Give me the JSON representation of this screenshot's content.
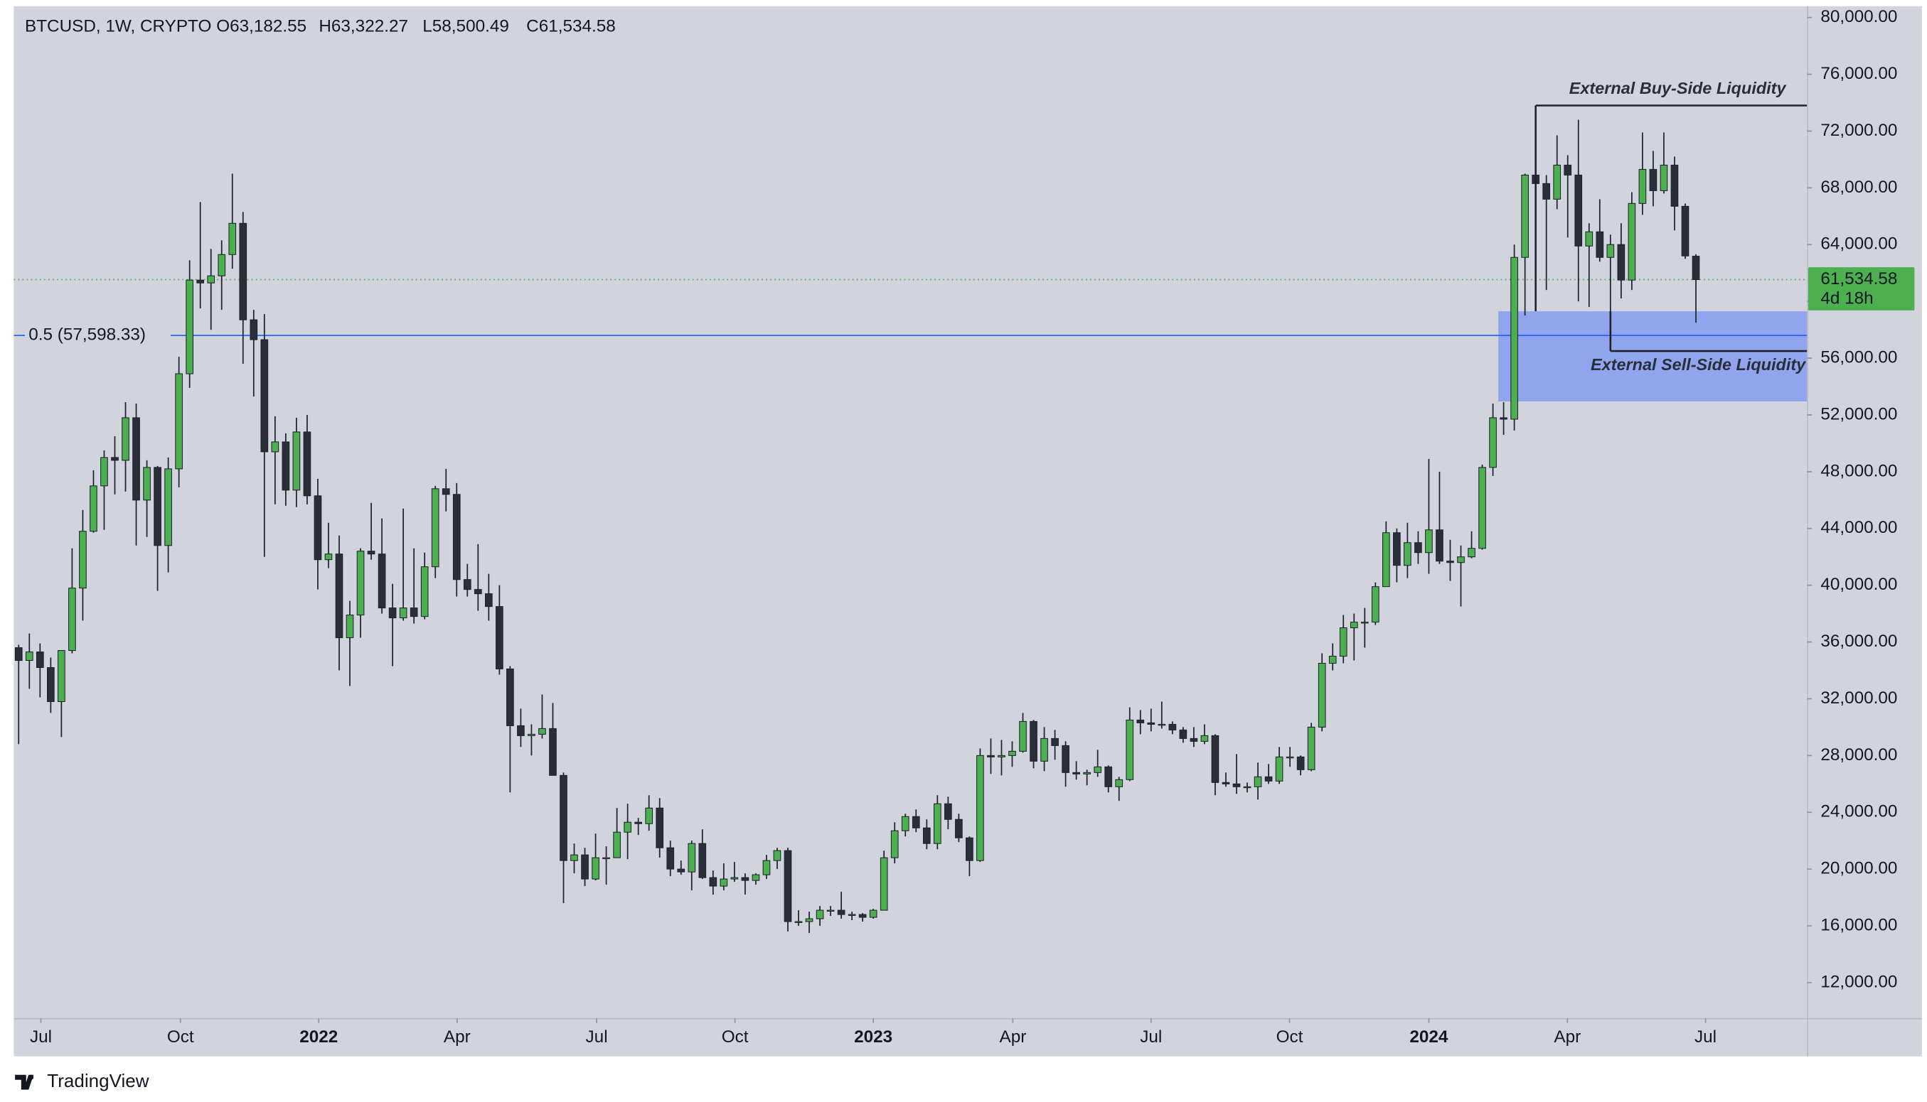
{
  "chart_data": {
    "type": "candlestick",
    "legend": {
      "symbol": "BTCUSD, 1W, CRYPTO",
      "open": "O63,182.55",
      "high": "H63,322.27",
      "low": "L58,500.49",
      "close": "C61,534.58"
    },
    "up_color": "#4caf50",
    "down_color": "#2a2e39",
    "wick_color": "#1e222d",
    "open": [
      35600,
      34700,
      35300,
      34200,
      31800,
      35400,
      39800,
      43800,
      47000,
      49000,
      48800,
      51800,
      46000,
      48300,
      42800,
      48200,
      54900,
      61500,
      61300,
      61800,
      63300,
      65500,
      58700,
      57300,
      49400,
      50100,
      46700,
      50800,
      46300,
      41800,
      42200,
      36300,
      37900,
      42400,
      42200,
      38400,
      37700,
      38400,
      37800,
      41300,
      46800,
      46400,
      40400,
      39700,
      39400,
      38500,
      34100,
      30100,
      29400,
      29500,
      29900,
      26600,
      20600,
      21000,
      19300,
      20800,
      20800,
      22600,
      23300,
      23200,
      24300,
      21500,
      20000,
      19800,
      21800,
      19400,
      18800,
      19300,
      19400,
      19200,
      19600,
      20600,
      21300,
      16300,
      16300,
      16500,
      17100,
      17100,
      16800,
      16800,
      16600,
      17100,
      20800,
      22700,
      23700,
      22900,
      21800,
      24600,
      23500,
      22200,
      20600,
      28000,
      27900,
      28000,
      28300,
      30400,
      27600,
      29200,
      28700,
      26800,
      26700,
      26800,
      27200,
      25800,
      26300,
      30500,
      30300,
      30200,
      30200,
      29800,
      29200,
      29000,
      29400,
      26100,
      26000,
      25800,
      25800,
      26500,
      26200,
      27900,
      27900,
      27000,
      30000,
      34500,
      35000,
      37000,
      37400,
      37400,
      39900,
      43700,
      41400,
      43000,
      42300,
      43900,
      41700,
      41600,
      42000,
      42600,
      48300,
      51800,
      51700,
      63100,
      68900,
      68300,
      67200,
      69600,
      68900,
      63900,
      64900,
      63100,
      64000,
      61500,
      66900,
      69300,
      67800,
      69600,
      66700,
      63182.55
    ],
    "high": [
      35800,
      36600,
      35900,
      34900,
      35400,
      42600,
      45300,
      48100,
      49500,
      50500,
      52900,
      52800,
      48800,
      48400,
      49000,
      56100,
      62900,
      67000,
      63700,
      64300,
      69000,
      66300,
      59400,
      59100,
      51900,
      50700,
      51800,
      52000,
      47500,
      44400,
      43500,
      38900,
      42600,
      45800,
      44700,
      40100,
      45400,
      42600,
      42300,
      47000,
      48200,
      47200,
      41500,
      42900,
      40800,
      40000,
      34300,
      31300,
      30200,
      32300,
      31700,
      26800,
      21800,
      21500,
      22500,
      21600,
      24300,
      24600,
      23600,
      25200,
      25000,
      22000,
      20600,
      22000,
      22800,
      19900,
      20400,
      20500,
      19700,
      19700,
      21000,
      21500,
      21500,
      17100,
      17000,
      17400,
      17400,
      18400,
      17000,
      16900,
      17200,
      21300,
      23300,
      23900,
      24200,
      23500,
      25200,
      25100,
      23900,
      22300,
      28500,
      29200,
      29100,
      29000,
      31000,
      30500,
      30000,
      29800,
      29000,
      27600,
      27000,
      28400,
      27300,
      26500,
      31400,
      31200,
      31300,
      31800,
      30400,
      30000,
      30000,
      30200,
      29500,
      26800,
      28100,
      26100,
      27500,
      27400,
      28600,
      28600,
      28000,
      30300,
      35200,
      35900,
      37900,
      38000,
      38400,
      40200,
      44500,
      44000,
      44400,
      43800,
      48900,
      48000,
      43200,
      42800,
      43800,
      48500,
      52800,
      52900,
      64000,
      69000,
      73800,
      68900,
      71700,
      70300,
      72800,
      65500,
      67200,
      64700,
      65500,
      67700,
      71900,
      70600,
      71900,
      70200,
      66900,
      63322.27
    ],
    "low": [
      28800,
      32700,
      32100,
      31000,
      29300,
      35200,
      37500,
      43700,
      43900,
      46400,
      46600,
      42800,
      43400,
      39600,
      40900,
      46900,
      53900,
      59500,
      58000,
      59400,
      62300,
      55600,
      53300,
      42000,
      45700,
      45600,
      45500,
      45700,
      39700,
      41200,
      34000,
      32900,
      36300,
      41800,
      38000,
      34300,
      37500,
      37300,
      37600,
      40500,
      45200,
      39200,
      39200,
      38200,
      37500,
      33700,
      25400,
      28600,
      28000,
      29200,
      26600,
      17600,
      19700,
      18800,
      19200,
      18900,
      20800,
      20700,
      22400,
      22700,
      20800,
      19500,
      19600,
      18500,
      19300,
      18200,
      18500,
      19100,
      18200,
      18900,
      19300,
      20000,
      15600,
      16000,
      15500,
      16000,
      16700,
      16500,
      16400,
      16300,
      16500,
      17100,
      20400,
      22300,
      22600,
      21400,
      21400,
      22800,
      21900,
      19500,
      20500,
      26700,
      26600,
      27200,
      28200,
      27100,
      26900,
      27700,
      25800,
      26300,
      25900,
      26500,
      25400,
      24800,
      26200,
      29500,
      29700,
      29900,
      29500,
      28900,
      28600,
      28800,
      25200,
      25800,
      25300,
      25400,
      24900,
      26000,
      26000,
      27200,
      26600,
      26900,
      29700,
      34000,
      34500,
      34700,
      35600,
      37200,
      39900,
      40200,
      40500,
      41500,
      40800,
      41500,
      40300,
      38500,
      41900,
      42500,
      47700,
      50600,
      50900,
      59000,
      64500,
      60800,
      66500,
      64500,
      60000,
      59600,
      62800,
      56500,
      60200,
      60800,
      66100,
      66700,
      67600,
      65000,
      63000,
      58500.49
    ],
    "close": [
      34700,
      35300,
      34200,
      31800,
      35400,
      39800,
      43800,
      47000,
      49000,
      48800,
      51800,
      46000,
      48300,
      42800,
      48200,
      54900,
      61500,
      61300,
      61800,
      63300,
      65500,
      58700,
      57300,
      49400,
      50100,
      46700,
      50800,
      46300,
      41800,
      42200,
      36300,
      37900,
      42400,
      42200,
      38400,
      37700,
      38400,
      37800,
      41300,
      46800,
      46400,
      40400,
      39700,
      39400,
      38500,
      34100,
      30100,
      29400,
      29500,
      29900,
      26600,
      20600,
      21000,
      19300,
      20800,
      20800,
      22600,
      23300,
      23200,
      24300,
      21500,
      20000,
      19800,
      21800,
      19400,
      18800,
      19300,
      19400,
      19200,
      19600,
      20600,
      21300,
      16300,
      16300,
      16500,
      17100,
      17100,
      16800,
      16800,
      16600,
      17100,
      20800,
      22700,
      23700,
      22900,
      21800,
      24600,
      23500,
      22200,
      20600,
      28000,
      27900,
      28000,
      28300,
      30400,
      27600,
      29200,
      28700,
      26800,
      26700,
      26800,
      27200,
      25800,
      26300,
      30500,
      30300,
      30200,
      30200,
      29800,
      29200,
      29000,
      29400,
      26100,
      26000,
      25800,
      25800,
      26500,
      26200,
      27900,
      27900,
      27000,
      30000,
      34500,
      35000,
      37000,
      37400,
      37400,
      39900,
      43700,
      41400,
      43000,
      42300,
      43900,
      41700,
      41600,
      42000,
      42600,
      48300,
      51800,
      51700,
      63100,
      68900,
      68300,
      67200,
      69600,
      68900,
      63900,
      64900,
      63100,
      64000,
      61500,
      66900,
      69300,
      67800,
      69600,
      66700,
      63200,
      61534.58
    ],
    "xlim": [
      -0.46,
      167.4
    ],
    "xticks": [
      {
        "value": 2.08,
        "label": "Jul"
      },
      {
        "value": 15.14,
        "label": "Oct"
      },
      {
        "value": 28.09,
        "label": "2022"
      },
      {
        "value": 41.04,
        "label": "Apr"
      },
      {
        "value": 54.1,
        "label": "Jul"
      },
      {
        "value": 67.05,
        "label": "Oct"
      },
      {
        "value": 80.0,
        "label": "2023"
      },
      {
        "value": 93.06,
        "label": "Apr"
      },
      {
        "value": 106.0,
        "label": "Jul"
      },
      {
        "value": 118.96,
        "label": "Oct"
      },
      {
        "value": 132.0,
        "label": "2024"
      },
      {
        "value": 144.97,
        "label": "Apr"
      },
      {
        "value": 157.9,
        "label": "Jul"
      }
    ],
    "ylim": [
      9500,
      80800
    ],
    "yticks": [
      {
        "value": 12000,
        "label": "12,000.00"
      },
      {
        "value": 16000,
        "label": "16,000.00"
      },
      {
        "value": 20000,
        "label": "20,000.00"
      },
      {
        "value": 24000,
        "label": "24,000.00"
      },
      {
        "value": 28000,
        "label": "28,000.00"
      },
      {
        "value": 32000,
        "label": "32,000.00"
      },
      {
        "value": 36000,
        "label": "36,000.00"
      },
      {
        "value": 40000,
        "label": "40,000.00"
      },
      {
        "value": 44000,
        "label": "44,000.00"
      },
      {
        "value": 48000,
        "label": "48,000.00"
      },
      {
        "value": 52000,
        "label": "52,000.00"
      },
      {
        "value": 56000,
        "label": "56,000.00"
      },
      {
        "value": 60000,
        "label": "60,000.00"
      },
      {
        "value": 64000,
        "label": "64,000.00"
      },
      {
        "value": 68000,
        "label": "68,000.00"
      },
      {
        "value": 72000,
        "label": "72,000.00"
      },
      {
        "value": 76000,
        "label": "76,000.00"
      },
      {
        "value": 80000,
        "label": "80,000.00"
      }
    ],
    "grid": false,
    "last_price": {
      "value": 61534.58,
      "label": "61,534.58",
      "color": "#4caf50"
    },
    "countdown": "4d 18h",
    "fib_level": {
      "value": 57598.33,
      "label": "0.5 (57,598.33)",
      "color": "#2962ff"
    },
    "zone": {
      "start": 139,
      "top": 59300,
      "bottom": 52950,
      "color": "#7b95f5"
    },
    "annotations": [
      {
        "text": "External Buy-Side Liquidity",
        "value": 73800,
        "start": 142
      },
      {
        "text": "External Sell-Side Liquidity",
        "value": 56500,
        "start": 149
      }
    ],
    "branding": "TradingView"
  }
}
